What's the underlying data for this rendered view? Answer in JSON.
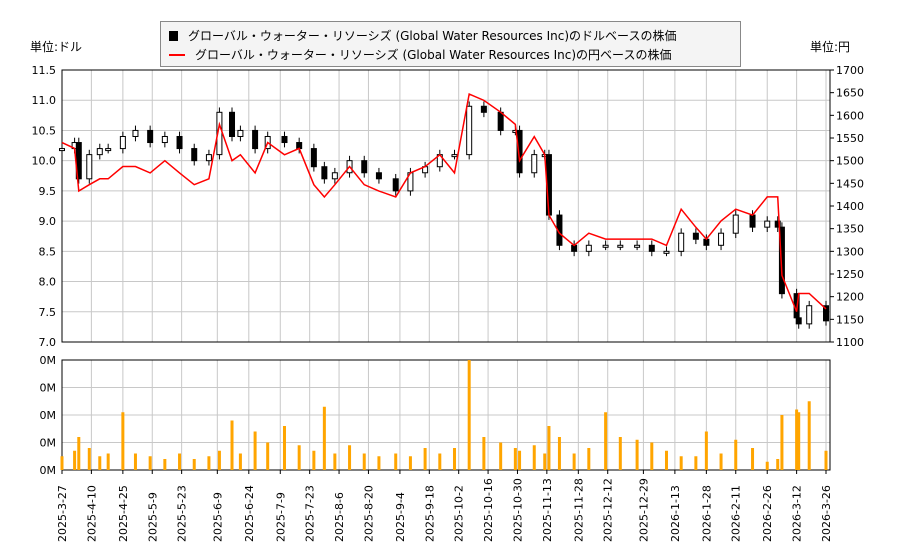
{
  "legend": {
    "usd_label": "グローバル・ウォーター・リソーシズ (Global Water Resources Inc)のドルベースの株価",
    "jpy_label": "グローバル・ウォーター・リソーシズ (Global Water Resources Inc)の円ベースの株価"
  },
  "units": {
    "left": "単位:ドル",
    "right": "単位:円"
  },
  "colors": {
    "usd": "#000000",
    "jpy": "#ff0000",
    "volume": "#ffa500",
    "grid": "#c8c8c8"
  },
  "chart_data": [
    {
      "type": "line",
      "title": "",
      "series": [
        {
          "name": "グローバル・ウォーター・リソーシズ (Global Water Resources Inc)のドルベースの株価",
          "axis": "left"
        },
        {
          "name": "グローバル・ウォーター・リソーシズ (Global Water Resources Inc)の円ベースの株価",
          "axis": "right"
        }
      ],
      "x": [
        "2025-3-27",
        "2025-4-2",
        "2025-4-4",
        "2025-4-9",
        "2025-4-14",
        "2025-4-18",
        "2025-4-25",
        "2025-5-1",
        "2025-5-8",
        "2025-5-15",
        "2025-5-22",
        "2025-5-29",
        "2025-6-5",
        "2025-6-10",
        "2025-6-16",
        "2025-6-20",
        "2025-6-27",
        "2025-7-3",
        "2025-7-11",
        "2025-7-18",
        "2025-7-25",
        "2025-7-30",
        "2025-8-4",
        "2025-8-11",
        "2025-8-18",
        "2025-8-25",
        "2025-9-2",
        "2025-9-9",
        "2025-9-16",
        "2025-9-23",
        "2025-9-30",
        "2025-10-7",
        "2025-10-14",
        "2025-10-22",
        "2025-10-29",
        "2025-10-31",
        "2025-11-7",
        "2025-11-12",
        "2025-11-14",
        "2025-11-19",
        "2025-11-26",
        "2025-12-3",
        "2025-12-11",
        "2025-12-18",
        "2025-12-26",
        "2026-1-2",
        "2026-1-9",
        "2026-1-16",
        "2026-1-23",
        "2026-1-28",
        "2026-2-4",
        "2026-2-11",
        "2026-2-19",
        "2026-2-26",
        "2026-3-3",
        "2026-3-5",
        "2026-3-12",
        "2026-3-13",
        "2026-3-18",
        "2026-3-26"
      ],
      "usd": [
        10.2,
        10.3,
        9.7,
        10.1,
        10.2,
        10.2,
        10.4,
        10.5,
        10.3,
        10.4,
        10.2,
        10.0,
        10.1,
        10.8,
        10.4,
        10.5,
        10.2,
        10.4,
        10.3,
        10.2,
        9.9,
        9.7,
        9.8,
        10.0,
        9.8,
        9.7,
        9.5,
        9.8,
        9.9,
        10.1,
        10.1,
        10.9,
        10.8,
        10.5,
        10.5,
        9.8,
        10.1,
        10.1,
        9.1,
        8.6,
        8.5,
        8.6,
        8.6,
        8.6,
        8.6,
        8.5,
        8.5,
        8.8,
        8.7,
        8.6,
        8.8,
        9.1,
        8.9,
        9.0,
        8.9,
        7.8,
        7.4,
        7.3,
        7.6,
        7.35
      ],
      "jpy": [
        1540,
        1527,
        1433,
        1447,
        1460,
        1460,
        1487,
        1487,
        1473,
        1500,
        1473,
        1447,
        1460,
        1580,
        1500,
        1513,
        1473,
        1540,
        1513,
        1527,
        1447,
        1420,
        1447,
        1487,
        1447,
        1433,
        1420,
        1473,
        1487,
        1513,
        1473,
        1647,
        1633,
        1607,
        1580,
        1500,
        1553,
        1513,
        1380,
        1340,
        1313,
        1340,
        1327,
        1327,
        1327,
        1327,
        1313,
        1393,
        1353,
        1327,
        1367,
        1393,
        1380,
        1420,
        1420,
        1247,
        1167,
        1207,
        1207,
        1173
      ],
      "ylim_left": [
        7.0,
        11.5
      ],
      "yticks_left": [
        "7.0",
        "7.5",
        "8.0",
        "8.5",
        "9.0",
        "9.5",
        "10.0",
        "10.5",
        "11.0",
        "11.5"
      ],
      "ylim_right": [
        1100,
        1700
      ],
      "yticks_right": [
        "1100",
        "1150",
        "1200",
        "1250",
        "1300",
        "1350",
        "1400",
        "1450",
        "1500",
        "1550",
        "1600",
        "1650",
        "1700"
      ],
      "grid": true,
      "legend": "top-center"
    },
    {
      "type": "bar",
      "title": "",
      "ylabel": "",
      "yticks": [
        "0M",
        "0M",
        "0M",
        "0M",
        "0M"
      ],
      "ylim": [
        0,
        0.04
      ],
      "volume": [
        0.005,
        0.007,
        0.012,
        0.008,
        0.005,
        0.006,
        0.021,
        0.006,
        0.005,
        0.004,
        0.006,
        0.004,
        0.005,
        0.007,
        0.018,
        0.006,
        0.014,
        0.01,
        0.016,
        0.009,
        0.007,
        0.023,
        0.006,
        0.009,
        0.006,
        0.005,
        0.006,
        0.005,
        0.008,
        0.006,
        0.008,
        0.04,
        0.012,
        0.01,
        0.008,
        0.007,
        0.009,
        0.006,
        0.016,
        0.012,
        0.006,
        0.008,
        0.021,
        0.012,
        0.011,
        0.01,
        0.007,
        0.005,
        0.005,
        0.014,
        0.006,
        0.011,
        0.008,
        0.003,
        0.004,
        0.02,
        0.022,
        0.021,
        0.025,
        0.007
      ]
    },
    {
      "xticks": [
        "2025-3-27",
        "2025-4-10",
        "2025-4-25",
        "2025-5-9",
        "2025-5-23",
        "2025-6-9",
        "2025-6-24",
        "2025-7-9",
        "2025-7-23",
        "2025-8-6",
        "2025-8-20",
        "2025-9-4",
        "2025-9-18",
        "2025-10-2",
        "2025-10-16",
        "2025-10-30",
        "2025-11-13",
        "2025-11-28",
        "2025-12-12",
        "2025-12-29",
        "2026-1-13",
        "2026-1-28",
        "2026-2-11",
        "2026-2-26",
        "2026-3-12",
        "2026-3-26"
      ]
    }
  ]
}
